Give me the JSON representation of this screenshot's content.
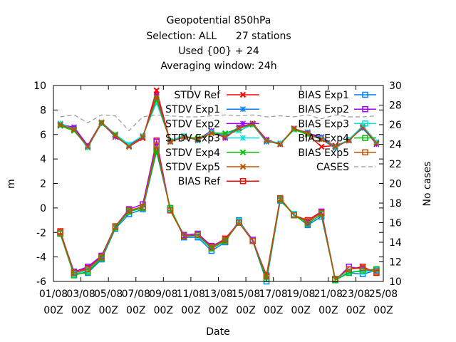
{
  "chart_data": {
    "type": "line",
    "title_lines": [
      "Geopotential 850hPa",
      "Selection: ALL      27 stations",
      "Used {00} + 24",
      "Averaging window: 24h"
    ],
    "xlabel": "Date",
    "ylabel": "m",
    "y2label": "No cases",
    "ylim": [
      -6,
      10
    ],
    "y2lim": [
      10,
      30
    ],
    "yticks": [
      -6,
      -4,
      -2,
      0,
      2,
      4,
      6,
      8,
      10
    ],
    "y2ticks": [
      10,
      12,
      14,
      16,
      18,
      20,
      22,
      24,
      26,
      28,
      30
    ],
    "xlim": [
      0,
      24
    ],
    "xticks": [
      0,
      2,
      4,
      6,
      8,
      10,
      12,
      14,
      16,
      18,
      20,
      22,
      24
    ],
    "xtick_labels": [
      [
        "01/08",
        "00Z"
      ],
      [
        "03/08",
        "00Z"
      ],
      [
        "05/08",
        "00Z"
      ],
      [
        "07/08",
        "00Z"
      ],
      [
        "09/08",
        "00Z"
      ],
      [
        "11/08",
        "00Z"
      ],
      [
        "13/08",
        "00Z"
      ],
      [
        "15/08",
        "00Z"
      ],
      [
        "17/08",
        "00Z"
      ],
      [
        "19/08",
        "00Z"
      ],
      [
        "21/08",
        "00Z"
      ],
      [
        "23/08",
        "00Z"
      ],
      [
        "25/08",
        "00Z"
      ]
    ],
    "x": [
      0.5,
      1.5,
      2.5,
      3.5,
      4.5,
      5.5,
      6.5,
      7.5,
      8.5,
      9.5,
      10.5,
      11.5,
      12.5,
      13.5,
      14.5,
      15.5,
      16.5,
      17.5,
      18.5,
      19.5,
      20.5,
      21.5,
      22.5,
      23.5
    ],
    "series": [
      {
        "name": "STDV Ref",
        "color": "#ff0000",
        "marker": "x",
        "axis": "y1",
        "values": [
          6.8,
          6.4,
          5.1,
          7.0,
          6.0,
          5.0,
          5.7,
          9.6,
          5.4,
          5.8,
          5.6,
          6.1,
          5.8,
          6.5,
          6.9,
          5.5,
          5.2,
          6.5,
          6.0,
          5.0,
          5.1,
          5.5,
          6.6,
          5.3
        ]
      },
      {
        "name": "STDV Exp1",
        "color": "#0080ff",
        "marker": "star",
        "axis": "y1",
        "values": [
          6.9,
          6.5,
          5.0,
          6.9,
          5.9,
          5.1,
          5.9,
          8.8,
          5.5,
          5.9,
          5.5,
          6.2,
          5.9,
          6.6,
          6.8,
          5.4,
          5.3,
          6.4,
          6.2,
          5.6,
          4.9,
          5.6,
          6.5,
          5.3
        ]
      },
      {
        "name": "STDV Exp2",
        "color": "#a000ff",
        "marker": "star",
        "axis": "y1",
        "values": [
          6.8,
          6.6,
          5.1,
          7.0,
          5.8,
          5.1,
          5.8,
          9.2,
          5.4,
          5.8,
          5.6,
          6.3,
          5.7,
          6.6,
          6.9,
          5.6,
          5.2,
          6.5,
          6.1,
          5.8,
          5.0,
          5.5,
          6.6,
          5.2
        ]
      },
      {
        "name": "STDV Exp3",
        "color": "#00e0e0",
        "marker": "star",
        "axis": "y1",
        "values": [
          6.9,
          6.4,
          4.9,
          7.0,
          6.0,
          5.2,
          5.9,
          8.6,
          5.5,
          5.9,
          5.6,
          6.2,
          6.0,
          6.3,
          6.8,
          5.5,
          5.3,
          6.4,
          6.0,
          5.7,
          5.0,
          5.6,
          6.7,
          5.4
        ]
      },
      {
        "name": "STDV Exp4",
        "color": "#00c000",
        "marker": "x",
        "axis": "y1",
        "values": [
          6.7,
          6.3,
          5.0,
          6.9,
          6.0,
          5.0,
          5.8,
          8.9,
          5.4,
          5.8,
          5.7,
          6.1,
          6.1,
          6.5,
          6.8,
          5.5,
          5.2,
          6.4,
          6.0,
          5.6,
          5.0,
          5.5,
          6.6,
          5.3
        ]
      },
      {
        "name": "STDV Exp5",
        "color": "#c05000",
        "marker": "x",
        "axis": "y1",
        "values": [
          6.8,
          6.4,
          5.0,
          7.0,
          5.9,
          5.0,
          5.8,
          9.1,
          5.4,
          5.8,
          5.6,
          6.1,
          5.8,
          6.5,
          6.9,
          5.5,
          5.2,
          6.5,
          6.1,
          5.6,
          5.0,
          5.5,
          6.6,
          5.3
        ]
      },
      {
        "name": "BIAS Ref",
        "color": "#ff0000",
        "marker": "square",
        "axis": "y1",
        "values": [
          -1.9,
          -5.3,
          -4.9,
          -4.0,
          -1.5,
          -0.2,
          0.1,
          5.5,
          -0.2,
          -2.3,
          -2.2,
          -3.2,
          -2.5,
          -1.2,
          -2.7,
          -5.5,
          0.8,
          -0.6,
          -1.0,
          -0.3,
          -5.8,
          -5.0,
          -4.8,
          -5.3
        ]
      },
      {
        "name": "BIAS Exp1",
        "color": "#0080ff",
        "marker": "square",
        "axis": "y1",
        "values": [
          -2.1,
          -5.4,
          -5.3,
          -4.2,
          -1.7,
          -0.5,
          -0.1,
          4.6,
          -0.1,
          -2.4,
          -2.4,
          -3.5,
          -2.8,
          -1.0,
          -2.7,
          -6.0,
          0.6,
          -0.5,
          -1.4,
          -0.7,
          -5.8,
          -5.3,
          -5.4,
          -5.1
        ]
      },
      {
        "name": "BIAS Exp2",
        "color": "#a000ff",
        "marker": "square",
        "axis": "y1",
        "values": [
          -2.0,
          -5.2,
          -4.8,
          -3.9,
          -1.5,
          -0.1,
          0.3,
          5.4,
          -0.2,
          -2.2,
          -2.1,
          -3.1,
          -2.6,
          -1.1,
          -2.6,
          -5.6,
          0.7,
          -0.6,
          -1.2,
          -0.3,
          -5.9,
          -4.8,
          -5.0,
          -5.2
        ]
      },
      {
        "name": "BIAS Exp3",
        "color": "#00e0e0",
        "marker": "square",
        "axis": "y1",
        "values": [
          -2.1,
          -5.4,
          -5.1,
          -4.1,
          -1.6,
          -0.3,
          0.0,
          4.8,
          -0.1,
          -2.3,
          -2.3,
          -3.3,
          -2.7,
          -1.1,
          -2.7,
          -5.8,
          0.7,
          -0.5,
          -1.3,
          -0.5,
          -5.8,
          -5.2,
          -5.2,
          -5.2
        ]
      },
      {
        "name": "BIAS Exp4",
        "color": "#00c000",
        "marker": "square",
        "axis": "y1",
        "values": [
          -2.1,
          -5.5,
          -5.2,
          -4.1,
          -1.6,
          -0.3,
          0.0,
          4.7,
          0.0,
          -2.3,
          -2.2,
          -3.3,
          -2.7,
          -1.2,
          -2.7,
          -5.8,
          0.7,
          -0.6,
          -1.3,
          -0.5,
          -5.9,
          -5.3,
          -5.1,
          -5.0
        ]
      },
      {
        "name": "BIAS Exp5",
        "color": "#c05000",
        "marker": "square",
        "axis": "y1",
        "values": [
          -2.0,
          -5.3,
          -5.0,
          -4.0,
          -1.5,
          -0.2,
          0.1,
          5.1,
          -0.2,
          -2.3,
          -2.2,
          -3.2,
          -2.6,
          -1.2,
          -2.7,
          -5.6,
          0.8,
          -0.6,
          -1.1,
          -0.4,
          -5.8,
          -5.0,
          -4.9,
          -5.2
        ]
      },
      {
        "name": "CASES",
        "color": "#999999",
        "marker": "none",
        "dashed": true,
        "axis": "y2",
        "values": [
          26.8,
          27.0,
          26.2,
          27.0,
          26.9,
          25.4,
          26.8,
          27.0,
          26.9,
          26.8,
          26.8,
          26.9,
          27.0,
          26.9,
          27.0,
          26.8,
          26.9,
          26.8,
          27.0,
          26.6,
          27.0,
          26.8,
          26.8,
          26.9
        ]
      }
    ],
    "legend_position": "top-right, inside plot"
  }
}
